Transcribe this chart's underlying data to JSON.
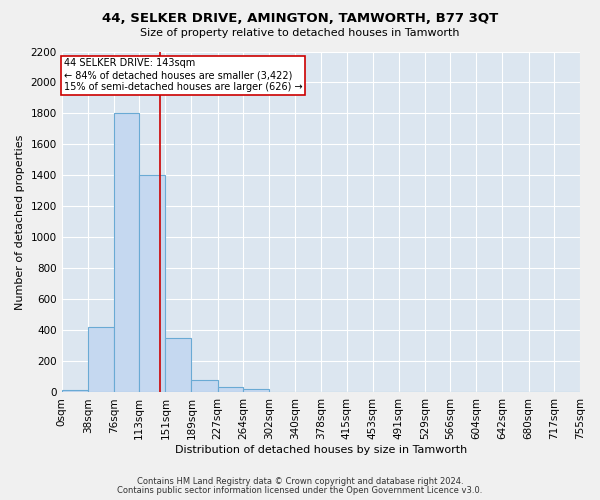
{
  "title": "44, SELKER DRIVE, AMINGTON, TAMWORTH, B77 3QT",
  "subtitle": "Size of property relative to detached houses in Tamworth",
  "xlabel": "Distribution of detached houses by size in Tamworth",
  "ylabel": "Number of detached properties",
  "bin_edges": [
    0,
    38,
    76,
    113,
    151,
    189,
    227,
    264,
    302,
    340,
    378,
    415,
    453,
    491,
    529,
    566,
    604,
    642,
    680,
    717,
    755
  ],
  "bar_heights": [
    15,
    420,
    1800,
    1400,
    350,
    80,
    35,
    20,
    0,
    0,
    0,
    0,
    0,
    0,
    0,
    0,
    0,
    0,
    0,
    0
  ],
  "bar_color": "#c5d8f0",
  "bar_edge_color": "#6aaad4",
  "bar_edge_width": 0.8,
  "property_size": 143,
  "red_line_color": "#cc0000",
  "annotation_text_line1": "44 SELKER DRIVE: 143sqm",
  "annotation_text_line2": "← 84% of detached houses are smaller (3,422)",
  "annotation_text_line3": "15% of semi-detached houses are larger (626) →",
  "annotation_box_color": "#cc0000",
  "ylim": [
    0,
    2200
  ],
  "yticks": [
    0,
    200,
    400,
    600,
    800,
    1000,
    1200,
    1400,
    1600,
    1800,
    2000,
    2200
  ],
  "bg_color": "#dce6f0",
  "fig_color": "#f0f0f0",
  "grid_color": "#ffffff",
  "footer_line1": "Contains HM Land Registry data © Crown copyright and database right 2024.",
  "footer_line2": "Contains public sector information licensed under the Open Government Licence v3.0."
}
